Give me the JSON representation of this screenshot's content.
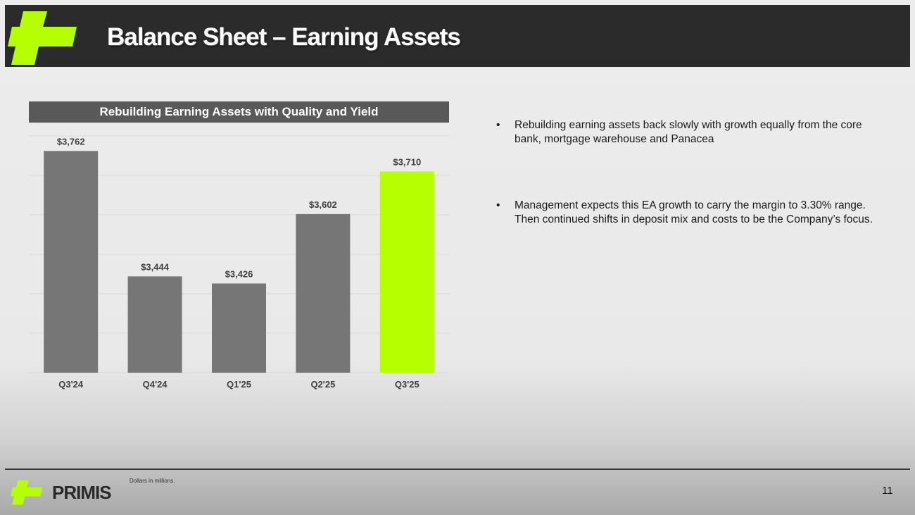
{
  "slide": {
    "title": "Balance Sheet – Earning Assets",
    "chart_banner": "Rebuilding Earning Assets with Quality and Yield",
    "bullets": [
      "Rebuilding earning assets back slowly with growth equally from the core bank, mortgage warehouse and Panacea",
      "Management expects this EA growth to carry the margin to 3.30% range.  Then continued shifts in deposit mix and costs to be the Company’s focus."
    ],
    "bullet_glyph": "•",
    "footnote": "Dollars in millions.",
    "brand": "PRIMIS",
    "page_number": "11",
    "logo_icon": "primis-cross-logo-icon"
  },
  "colors": {
    "accent": "#b5ff00",
    "bar": "#767676",
    "header_bg": "#2b2b2b",
    "banner_bg": "#595959"
  },
  "chart_data": {
    "type": "bar",
    "title": "Rebuilding Earning Assets with Quality and Yield",
    "categories": [
      "Q3'24",
      "Q4'24",
      "Q1'25",
      "Q2'25",
      "Q3'25"
    ],
    "values": [
      3762,
      3444,
      3426,
      3602,
      3710
    ],
    "data_labels": [
      "$3,762",
      "$3,444",
      "$3,426",
      "$3,602",
      "$3,710"
    ],
    "highlight_index": 4,
    "ylim": [
      3200,
      3800
    ],
    "grid": true,
    "legend": "none",
    "xlabel": "",
    "ylabel": ""
  }
}
